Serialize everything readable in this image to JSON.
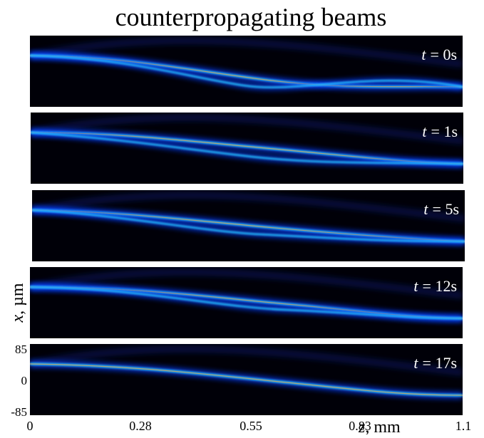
{
  "title": "counterpropagating beams",
  "panels": [
    {
      "var": "t",
      "rest": "= 0s"
    },
    {
      "var": "t",
      "rest": "= 1s"
    },
    {
      "var": "t",
      "rest": "= 5s"
    },
    {
      "var": "t",
      "rest": "= 12s"
    },
    {
      "var": "t",
      "rest": "= 17s"
    }
  ],
  "x_axis": {
    "var": "z",
    "unit": ", mm",
    "ticks": [
      "0",
      "0.28",
      "0.55",
      "0.83",
      "1.1"
    ]
  },
  "y_axis": {
    "var": "x",
    "unit": ", µm",
    "ticks": [
      "85",
      "0",
      "-85"
    ]
  }
}
